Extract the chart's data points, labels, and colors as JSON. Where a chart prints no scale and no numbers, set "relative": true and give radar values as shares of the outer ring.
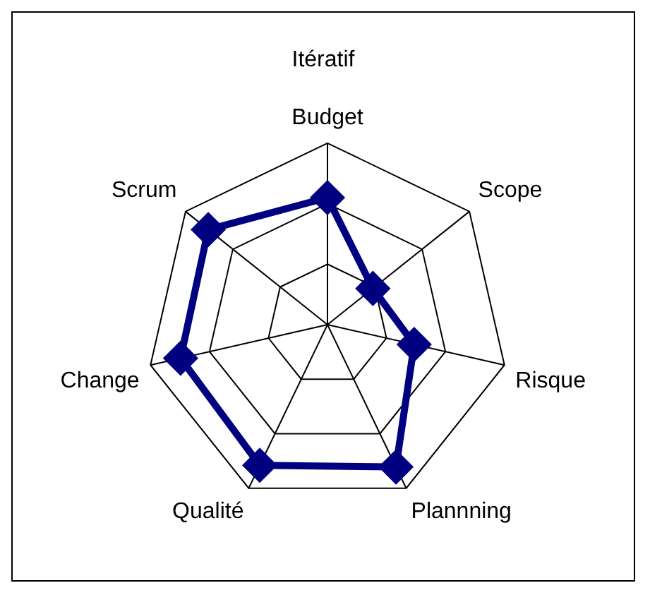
{
  "chart_data": {
    "type": "radar",
    "title": "Itératif",
    "relative": true,
    "categories": [
      "Budget",
      "Scope",
      "Risque",
      "Plannning",
      "Qualité",
      "Change",
      "Scrum"
    ],
    "marker": "diamond",
    "grid": true,
    "legend": false,
    "series": [
      {
        "color": "#000080",
        "values": [
          0.7,
          0.32,
          0.49,
          0.87,
          0.86,
          0.83,
          0.84
        ]
      }
    ]
  }
}
